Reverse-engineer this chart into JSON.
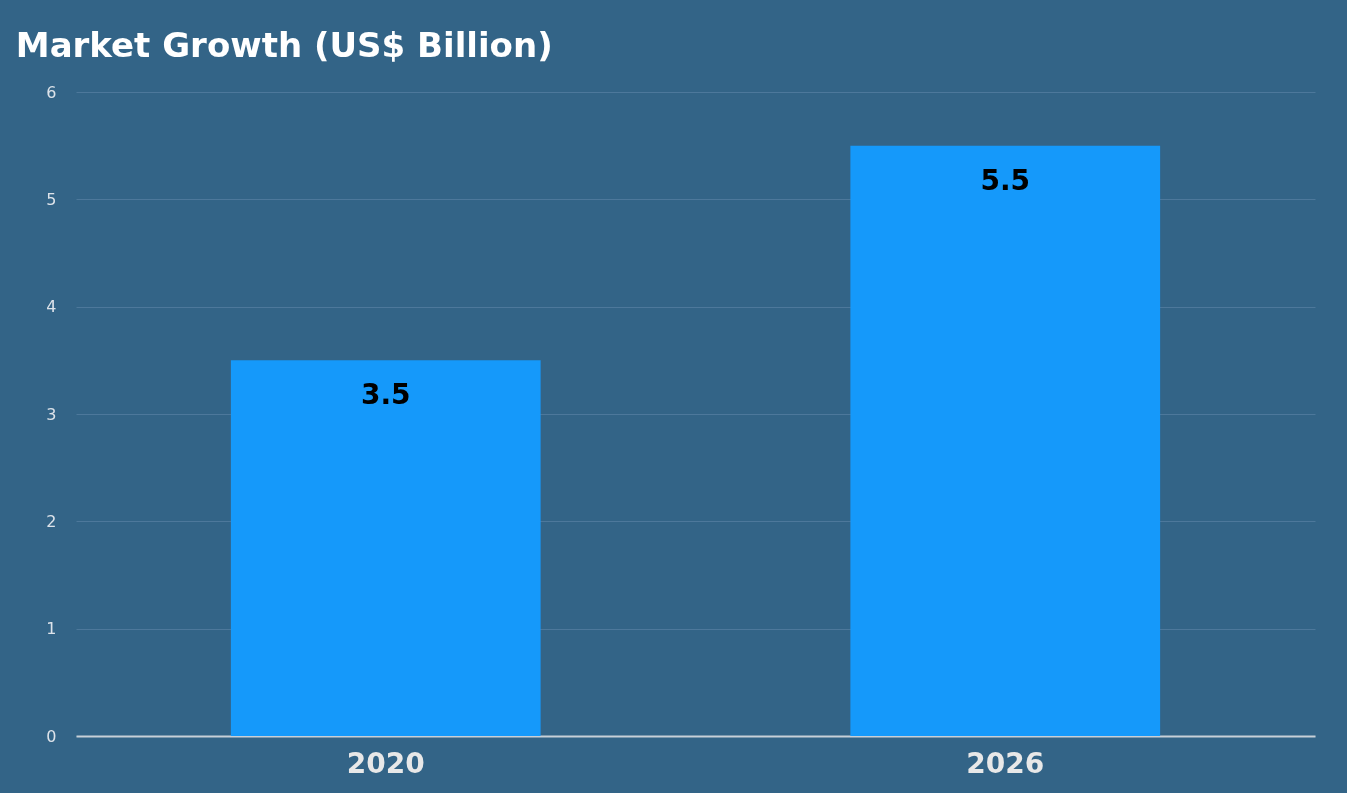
{
  "chart_data": {
    "type": "bar",
    "title": "Market Growth (US$ Billion)",
    "categories": [
      "2020",
      "2026"
    ],
    "values": [
      3.5,
      5.5
    ],
    "color": "#1599fa",
    "ylim": [
      0,
      6
    ],
    "yticks": [
      0,
      1,
      2,
      3,
      4,
      5,
      6
    ],
    "grid": "y",
    "data_labels": true
  }
}
